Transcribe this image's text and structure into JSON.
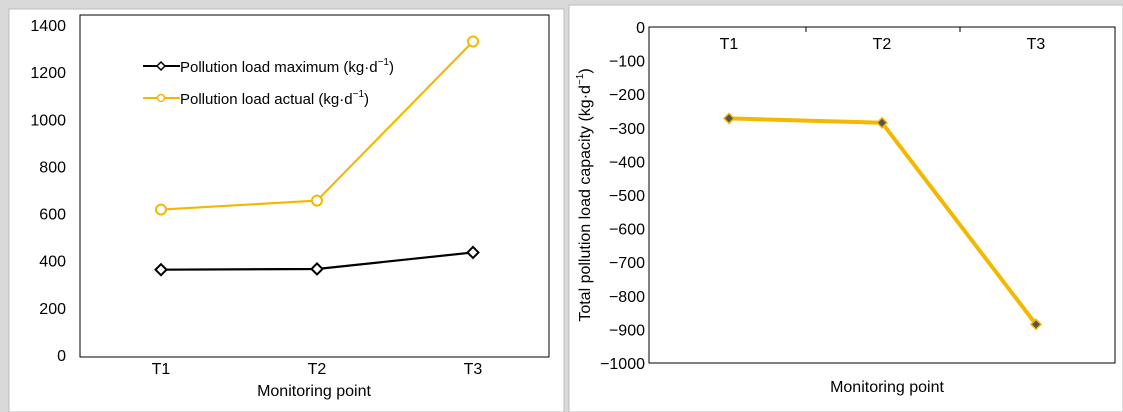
{
  "chart_data": [
    {
      "type": "line",
      "title": "",
      "xlabel": "Monitoring point",
      "ylabel": "",
      "categories": [
        "T1",
        "T2",
        "T3"
      ],
      "ylim": [
        0,
        1400
      ],
      "yticks": [
        0,
        200,
        400,
        600,
        800,
        1000,
        1200,
        1400
      ],
      "grid": false,
      "legend": "top-left",
      "series": [
        {
          "name": "Pollution load maximum (kg·d",
          "unit_sup": "−1",
          "name_close": ")",
          "values": [
            362,
            365,
            435
          ],
          "color": "#000000",
          "marker": "diamond-open"
        },
        {
          "name": "Pollution load actual (kg·d",
          "unit_sup": "−1",
          "name_close": ")",
          "values": [
            617,
            655,
            1330
          ],
          "color": "#f5b800",
          "marker": "circle-open"
        }
      ]
    },
    {
      "type": "line",
      "title": "",
      "xlabel": "Monitoring point",
      "ylabel": "Total pollution load capacity (kg·d",
      "ylabel_sup": "−1",
      "ylabel_close": ")",
      "categories": [
        "T1",
        "T2",
        "T3"
      ],
      "x_axis_position": "top",
      "ylim": [
        -1000,
        0
      ],
      "yticks": [
        0,
        -100,
        -200,
        -300,
        -400,
        -500,
        -600,
        -700,
        -800,
        -900,
        -1000
      ],
      "ytick_labels": [
        "0",
        "−100",
        "−200",
        "−300",
        "−400",
        "−500",
        "−600",
        "−700",
        "−800",
        "−900",
        "−1000"
      ],
      "grid": false,
      "series": [
        {
          "values": [
            -272,
            -285,
            -885
          ],
          "color": "#f5b800",
          "marker_color": "#555555",
          "marker": "diamond-filled"
        }
      ]
    }
  ]
}
